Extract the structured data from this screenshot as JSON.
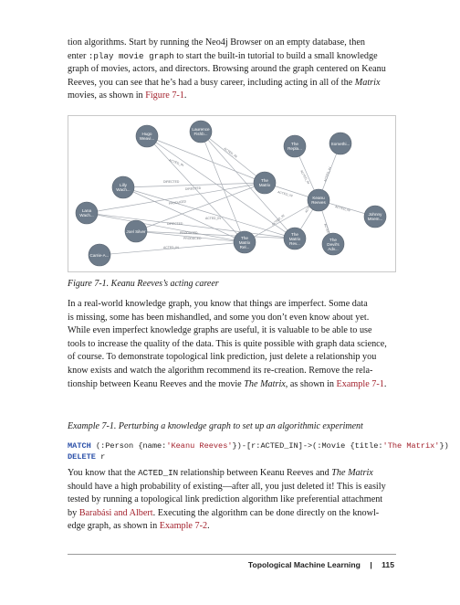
{
  "paragraph1": {
    "l1": "tion algorithms. Start by running the Neo4j Browser on an empty database, then",
    "l2a": "enter ",
    "l2code": ":play movie graph",
    "l2b": " to start the built-in tutorial to build a small knowledge",
    "l3": "graph of movies, actors, and directors. Browsing around the graph centered on Keanu",
    "l4a": "Reeves, you can see that he’s had a busy career, including acting in all of the ",
    "l4i": "Matrix",
    "l5a": "movies, as shown in ",
    "l5link": "Figure 7-1",
    "l5b": "."
  },
  "figure": {
    "caption": "Figure 7-1. Keanu Reeves’s acting career",
    "nodes": {
      "hugo": [
        "Hugo",
        "Weavi..."
      ],
      "laurence": [
        "Laurence",
        "Fishb..."
      ],
      "lilly": [
        "Lilly",
        "Wach..."
      ],
      "lana": [
        "Lana",
        "Wach..."
      ],
      "joel": "Joel Silver",
      "carrie": "Carrie-A...",
      "matrix": [
        "The",
        "Matrix"
      ],
      "reloaded": [
        "The",
        "Matrix",
        "Rel..."
      ],
      "revolutions": [
        "The",
        "Matrix",
        "Rev..."
      ],
      "keanu": [
        "Keanu",
        "Reeves"
      ],
      "replacements": [
        "The",
        "Repla..."
      ],
      "somethin": "Somethi...",
      "johnny": [
        "Johnny",
        "Mnem..."
      ],
      "devils": [
        "The",
        "Devil's",
        "Adv..."
      ]
    },
    "edge_labels": {
      "acted_in": "ACTED_IN",
      "directed": "DIRECTED",
      "produced": "PRODUCED"
    }
  },
  "paragraph2": {
    "l1": "In a real-world knowledge graph, you know that things are imperfect. Some data",
    "l2": "is missing, some has been mishandled, and some you don’t even know about yet.",
    "l3": "While even imperfect knowledge graphs are useful, it is valuable to be able to use",
    "l4": "tools to increase the quality of the data. This is quite possible with graph data science,",
    "l5": "of course. To demonstrate topological link prediction, just delete a relationship you",
    "l6": "know exists and watch the algorithm recommend its re-creation. Remove the rela-",
    "l7a": "tionship between Keanu Reeves and the movie ",
    "l7i": "The Matrix",
    "l7b": ", as shown in ",
    "l7link": "Example 7-1",
    "l7c": "."
  },
  "example": {
    "caption": "Example 7-1. Perturbing a knowledge graph to set up an algorithmic experiment",
    "match_kw": "MATCH",
    "code1a": " (:Person {name:",
    "code1s": "'Keanu Reeves'",
    "code1b": "})-[r:ACTED_IN]->(:Movie {title:",
    "code1s2": "'The Matrix'",
    "code1c": "})",
    "delete_kw": "DELETE",
    "code2": " r"
  },
  "paragraph3": {
    "l1a": "You know that the ",
    "l1code": "ACTED_IN",
    "l1b": " relationship between Keanu Reeves and ",
    "l1i": "The Matrix",
    "l2": "should have a high probability of existing—after all, you just deleted it! This is easily",
    "l3": "tested by running a topological link prediction algorithm like preferential attachment",
    "l4a": "by ",
    "l4link": "Barabási and Albert",
    "l4b": ". Executing the algorithm can be done directly on the knowl-",
    "l5a": "edge graph, as shown in ",
    "l5link": "Example 7-2",
    "l5b": "."
  },
  "footer": {
    "section": "Topological Machine Learning",
    "separator": "|",
    "page": "115"
  }
}
